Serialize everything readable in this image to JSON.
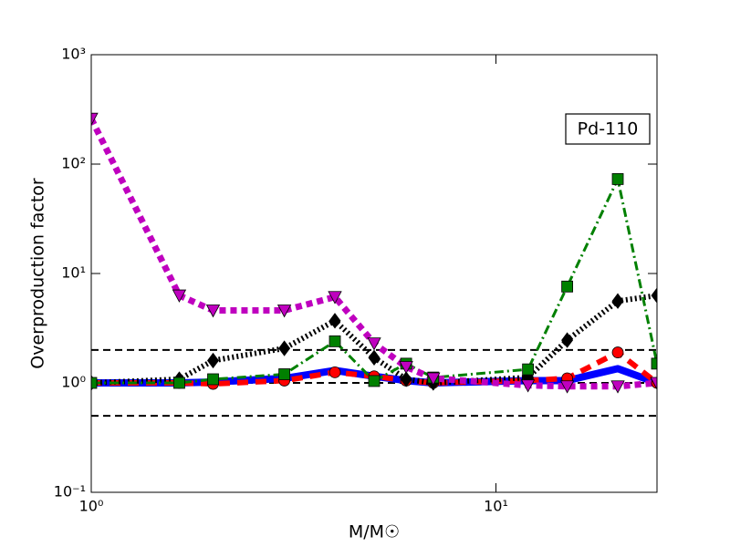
{
  "chart_data": {
    "type": "line",
    "xlabel": "M/M☉",
    "ylabel": "Overproduction factor",
    "annotation": "Pd-110",
    "x": [
      1,
      1.65,
      2,
      3,
      4,
      5,
      6,
      7,
      12,
      15,
      20,
      25
    ],
    "xlim": [
      1,
      25
    ],
    "ylim": [
      0.1,
      1000
    ],
    "xscale": "log",
    "yscale": "log",
    "xticks": [
      {
        "value": 1,
        "label": "10⁰"
      },
      {
        "value": 10,
        "label": "10¹"
      }
    ],
    "yticks": [
      {
        "value": 0.1,
        "label": "10⁻¹"
      },
      {
        "value": 1,
        "label": "10⁰"
      },
      {
        "value": 10,
        "label": "10¹"
      },
      {
        "value": 100,
        "label": "10²"
      },
      {
        "value": 1000,
        "label": "10³"
      }
    ],
    "hlines": [
      0.5,
      1,
      2
    ],
    "series": [
      {
        "color": "#0000ff",
        "style": "solid",
        "marker": "none",
        "values": [
          1.0,
          1.0,
          1.02,
          1.1,
          1.3,
          1.15,
          1.05,
          1.0,
          1.05,
          1.05,
          1.35,
          1.0
        ]
      },
      {
        "color": "#ff0000",
        "style": "dashed",
        "marker": "circle",
        "values": [
          1.0,
          1.0,
          0.98,
          1.05,
          1.25,
          1.15,
          1.05,
          1.0,
          1.05,
          1.1,
          1.9,
          1.0
        ]
      },
      {
        "color": "#000000",
        "style": "dotted",
        "marker": "diamond",
        "values": [
          1.0,
          1.08,
          1.6,
          2.07,
          3.7,
          1.7,
          1.08,
          1.0,
          1.12,
          2.46,
          5.6,
          6.3
        ]
      },
      {
        "color": "#008000",
        "style": "dashdot",
        "marker": "square",
        "values": [
          1.0,
          1.0,
          1.08,
          1.2,
          2.4,
          1.04,
          1.5,
          1.12,
          1.33,
          7.6,
          73,
          1.5
        ]
      },
      {
        "color": "#bf00bf",
        "style": "dotted-thick",
        "marker": "triangle-down",
        "values": [
          260,
          6.3,
          4.6,
          4.6,
          6.1,
          2.3,
          1.4,
          1.1,
          0.95,
          0.93,
          0.93,
          1.0
        ]
      }
    ]
  }
}
